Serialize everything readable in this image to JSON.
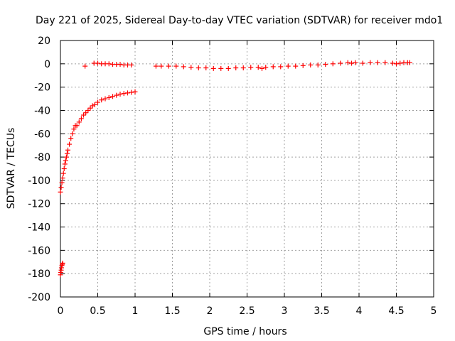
{
  "chart_data": {
    "type": "scatter",
    "title": "Day 221 of 2025, Sidereal Day-to-day VTEC variation (SDTVAR) for receiver mdo1",
    "xlabel": "GPS time / hours",
    "ylabel": "SDTVAR / TECUs",
    "xlim": [
      0,
      5
    ],
    "ylim": [
      -200,
      20
    ],
    "xticks": [
      0,
      0.5,
      1,
      1.5,
      2,
      2.5,
      3,
      3.5,
      4,
      4.5,
      5
    ],
    "xtick_labels": [
      "0",
      "0.5",
      "1",
      "1.5",
      "2",
      "2.5",
      "3",
      "3.5",
      "4",
      "4.5",
      "5"
    ],
    "yticks": [
      20,
      0,
      -20,
      -40,
      -60,
      -80,
      -100,
      -120,
      -140,
      -160,
      -180,
      -200
    ],
    "ytick_labels": [
      "20",
      "0",
      "-20",
      "-40",
      "-60",
      "-80",
      "-100",
      "-120",
      "-140",
      "-160",
      "-180",
      "-200"
    ],
    "grid": true,
    "marker": "+",
    "color": "#ff0000",
    "series": [
      {
        "name": "SDTVAR",
        "x": [
          0.0,
          0.005,
          0.01,
          0.015,
          0.02,
          0.025,
          0.03,
          0.0,
          0.01,
          0.02,
          0.03,
          0.04,
          0.05,
          0.06,
          0.07,
          0.08,
          0.09,
          0.1,
          0.12,
          0.14,
          0.16,
          0.18,
          0.2,
          0.22,
          0.25,
          0.28,
          0.31,
          0.34,
          0.37,
          0.4,
          0.43,
          0.46,
          0.5,
          0.55,
          0.6,
          0.65,
          0.7,
          0.75,
          0.8,
          0.85,
          0.9,
          0.95,
          1.0,
          0.33,
          0.45,
          0.5,
          0.55,
          0.6,
          0.65,
          0.7,
          0.75,
          0.8,
          0.85,
          0.9,
          0.95,
          1.28,
          1.35,
          1.45,
          1.55,
          1.65,
          1.75,
          1.85,
          1.95,
          2.05,
          2.15,
          2.25,
          2.35,
          2.45,
          2.55,
          2.65,
          2.7,
          2.75,
          2.85,
          2.95,
          3.05,
          3.15,
          3.25,
          3.35,
          3.45,
          3.55,
          3.65,
          3.75,
          3.85,
          3.9,
          3.95,
          4.05,
          4.15,
          4.25,
          4.35,
          4.45,
          4.5,
          4.55,
          4.6,
          4.65,
          4.68
        ],
        "y": [
          -181,
          -179,
          -177,
          -175,
          -173,
          -172,
          -171,
          -110,
          -106,
          -102,
          -98,
          -94,
          -90,
          -86,
          -83,
          -80,
          -77,
          -74,
          -69,
          -64,
          -60,
          -56,
          -53,
          -53,
          -50,
          -47,
          -44,
          -42,
          -40,
          -38,
          -36,
          -35,
          -33,
          -31,
          -30,
          -29,
          -28,
          -27,
          -26,
          -25.5,
          -25,
          -24.5,
          -24,
          -2,
          0.5,
          0.5,
          0,
          0,
          0,
          -0.5,
          -0.5,
          -0.5,
          -1,
          -1,
          -1,
          -2,
          -2,
          -2,
          -2,
          -2.5,
          -3,
          -3.5,
          -3.5,
          -4,
          -4,
          -4,
          -3.5,
          -3.5,
          -3,
          -3,
          -4,
          -3,
          -2.5,
          -2.5,
          -2,
          -2,
          -1.5,
          -1,
          -1,
          -0.5,
          0,
          0.5,
          1,
          0.5,
          1,
          0.5,
          1,
          1,
          1,
          0.5,
          0,
          0.5,
          1,
          1,
          1
        ]
      }
    ]
  }
}
